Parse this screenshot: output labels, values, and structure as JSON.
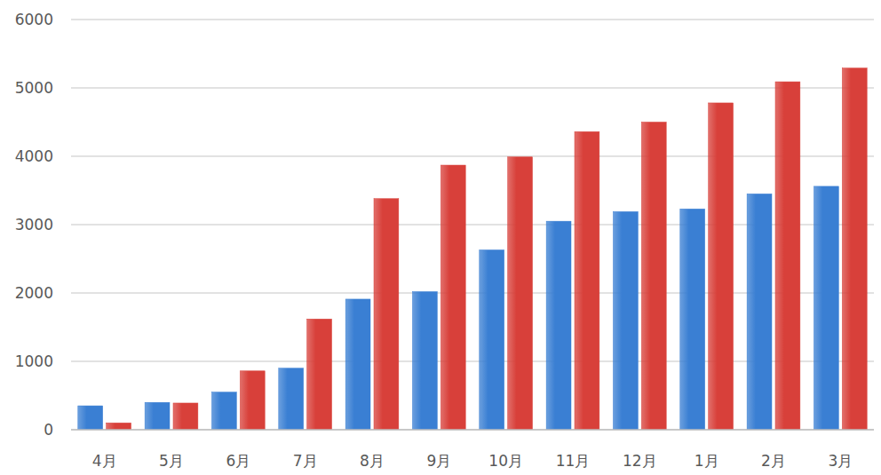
{
  "chart_data": {
    "type": "bar",
    "categories": [
      "4月",
      "5月",
      "6月",
      "7月",
      "8月",
      "9月",
      "10月",
      "11月",
      "12月",
      "1月",
      "2月",
      "3月"
    ],
    "series": [
      {
        "color": "#3a7fd3",
        "values": [
          350,
          400,
          550,
          900,
          1910,
          2020,
          2630,
          3050,
          3190,
          3230,
          3450,
          3560
        ]
      },
      {
        "color": "#d8403a",
        "values": [
          100,
          390,
          860,
          1620,
          3380,
          3870,
          3990,
          4360,
          4500,
          4780,
          5090,
          5290
        ]
      }
    ],
    "ylim": [
      0,
      6000
    ],
    "yticks": [
      0,
      1000,
      2000,
      3000,
      4000,
      5000,
      6000
    ],
    "grid": true
  }
}
